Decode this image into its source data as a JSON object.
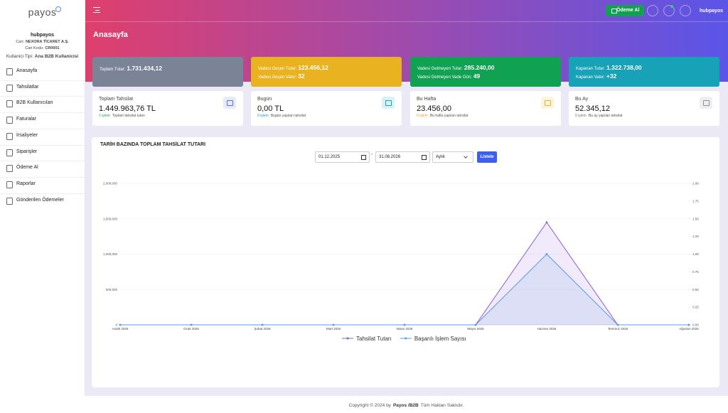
{
  "brand": "payos",
  "sidebar": {
    "company": "hubpayos",
    "info": [
      [
        "Cari:",
        "NEXORA TİCARET A.Ş."
      ],
      [
        "Cari Kodu:",
        "CR0001"
      ],
      [
        "Kullanici Tipi:",
        "Ana B2B Kullanicisi"
      ]
    ],
    "menu": [
      "Anasayfa",
      "Tahsilatlar",
      "B2B Kullanıcıları",
      "Faturalar",
      "İrsaliyeler",
      "Siparişler",
      "Ödeme Al",
      "Raporlar",
      "Gönderilen Ödemeler"
    ]
  },
  "topbar": {
    "pay_button": "Ödeme Al",
    "user": "hubpayos"
  },
  "page_title": "Anasayfa",
  "summary_cards": [
    {
      "color": "#7b8497",
      "rows": [
        [
          "Toplam Tutar:",
          "1.731.434,12"
        ]
      ]
    },
    {
      "color": "#e8b221",
      "rows": [
        [
          "Vadesi Geçen Tutar:",
          "123.456,12"
        ],
        [
          "Vadesi Geçen Valor:",
          "32"
        ]
      ]
    },
    {
      "color": "#10a152",
      "rows": [
        [
          "Vadesi Gelmeyen Tutar:",
          "285.240,00"
        ],
        [
          "Vadesi Gelmeyen Vade Gün:",
          "49"
        ]
      ]
    },
    {
      "color": "#17a2b8",
      "rows": [
        [
          "Kapanan Tutar:",
          "1.322.738,00"
        ],
        [
          "Kapanan Valor:",
          "+32"
        ]
      ]
    }
  ],
  "stat_cards": [
    {
      "title": "Toplam Tahsilat",
      "value": "1.449.963,76 TL",
      "count": "1 işlem",
      "note": "Toplam tahsilat tutarı",
      "icon_color": "#5b6fd6",
      "count_color": "#20a05a"
    },
    {
      "title": "Bugün",
      "value": "0,00 TL",
      "count": "0 işlem",
      "note": "Bugün yapılan tahsilat",
      "icon_color": "#17a2b8",
      "count_color": "#17a2b8"
    },
    {
      "title": "Bu Hafta",
      "value": "23.456,00",
      "count": "0 işlem",
      "note": "Bu hafta yapılan tahsilat",
      "icon_color": "#e8b221",
      "count_color": "#e8a521"
    },
    {
      "title": "Bu Ay",
      "value": "52.345,12",
      "count": "0 işlem",
      "note": "Bu ay yapılan tahsilat",
      "icon_color": "#8a8f99",
      "count_color": "#777"
    }
  ],
  "filter": {
    "start": "01.12.2025",
    "separator": "-",
    "end": "31.08.2026",
    "period": "Aylık",
    "button": "Listele"
  },
  "chart_data": {
    "type": "line",
    "title": "TARİH BAZINDA TOPLAM TAHSİLAT TUTARI",
    "categories": [
      "Aralık 2025",
      "Ocak 2026",
      "Şubat 2026",
      "Mart 2026",
      "Nisan 2026",
      "Mayıs 2026",
      "Haziran 2026",
      "Temmuz 2026",
      "Ağustos 2026"
    ],
    "series": [
      {
        "name": "Tahsilat Tutarı",
        "color": "#8b5cd6",
        "values": [
          0,
          0,
          0,
          0,
          0,
          0,
          1449963.76,
          0,
          0
        ]
      },
      {
        "name": "Başarılı İşlem Sayısı",
        "color": "#5b9be0",
        "axis": "y2",
        "values": [
          0,
          0,
          0,
          0,
          0,
          0,
          1,
          0,
          0
        ]
      }
    ],
    "ylim": [
      0,
      2000000
    ],
    "yticks": [
      0,
      {
        "value": 500000,
        "label": "500,000"
      },
      {
        "value": 1000000,
        "label": "1,000,000"
      },
      {
        "value": 1500000,
        "label": "1,500,000"
      },
      {
        "value": 2000000,
        "label": "2,000,000"
      }
    ],
    "y2lim": [
      0,
      2
    ],
    "y2ticks": [
      {
        "value": 0,
        "label": "0.00"
      },
      {
        "value": 0.25,
        "label": "0.25"
      },
      {
        "value": 0.5,
        "label": "0.50"
      },
      {
        "value": 0.75,
        "label": "0.75"
      },
      {
        "value": 1,
        "label": "1.00"
      },
      {
        "value": 1.25,
        "label": "1.25"
      },
      {
        "value": 1.5,
        "label": "1.50"
      },
      {
        "value": 1.75,
        "label": "1.75"
      },
      {
        "value": 2,
        "label": "2.00"
      }
    ],
    "grid": true,
    "legend": "bottom"
  },
  "footer": [
    "Copyright © 2024 by",
    "Payos /B2B",
    "Tüm Hakları Saklıdır."
  ]
}
